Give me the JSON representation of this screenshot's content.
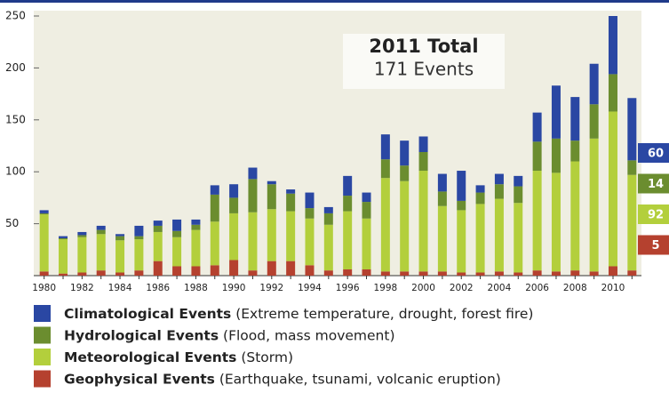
{
  "chart_data": {
    "type": "stacked_bar",
    "annotation": {
      "title": "2011 Total",
      "subtitle": "171 Events"
    },
    "categories": [
      "1980",
      null,
      "1982",
      null,
      "1984",
      null,
      "1986",
      null,
      "1988",
      null,
      "1990",
      null,
      "1992",
      null,
      "1994",
      null,
      "1996",
      null,
      "1998",
      null,
      "2000",
      null,
      "2002",
      null,
      "2004",
      null,
      "2006",
      null,
      "2008",
      null,
      "2010",
      null
    ],
    "series": [
      {
        "name": "Geophysical Events",
        "description": "(Earthquake, tsunami, volcanic eruption)",
        "color": "#b5412f",
        "values": [
          4,
          2,
          3,
          5,
          3,
          5,
          14,
          9,
          9,
          10,
          15,
          5,
          14,
          14,
          10,
          5,
          6,
          6,
          4,
          4,
          4,
          4,
          3,
          3,
          4,
          3,
          5,
          4,
          5,
          4,
          9,
          5
        ]
      },
      {
        "name": "Meteorological Events",
        "description": "(Storm)",
        "color": "#b3cf3c",
        "values": [
          55,
          33,
          34,
          35,
          31,
          30,
          28,
          28,
          35,
          42,
          45,
          56,
          50,
          48,
          45,
          44,
          56,
          49,
          90,
          87,
          97,
          63,
          60,
          66,
          70,
          67,
          96,
          95,
          105,
          128,
          149,
          92
        ]
      },
      {
        "name": "Hydrological Events",
        "description": "(Flood, mass movement)",
        "color": "#6b8d2f",
        "values": [
          1,
          1,
          2,
          4,
          4,
          3,
          6,
          6,
          5,
          26,
          15,
          32,
          24,
          17,
          10,
          11,
          15,
          16,
          18,
          15,
          18,
          14,
          9,
          11,
          14,
          16,
          28,
          33,
          20,
          33,
          36,
          14
        ]
      },
      {
        "name": "Climatological Events",
        "description": "(Extreme temperature, drought, forest fire)",
        "color": "#2a47a3",
        "values": [
          3,
          2,
          3,
          4,
          2,
          10,
          5,
          11,
          5,
          9,
          13,
          11,
          3,
          4,
          15,
          6,
          19,
          9,
          24,
          24,
          15,
          17,
          29,
          7,
          10,
          10,
          28,
          51,
          42,
          39,
          56,
          60
        ]
      }
    ],
    "ylim": [
      0,
      250
    ],
    "yticks": [
      50,
      100,
      150,
      200,
      250
    ]
  }
}
